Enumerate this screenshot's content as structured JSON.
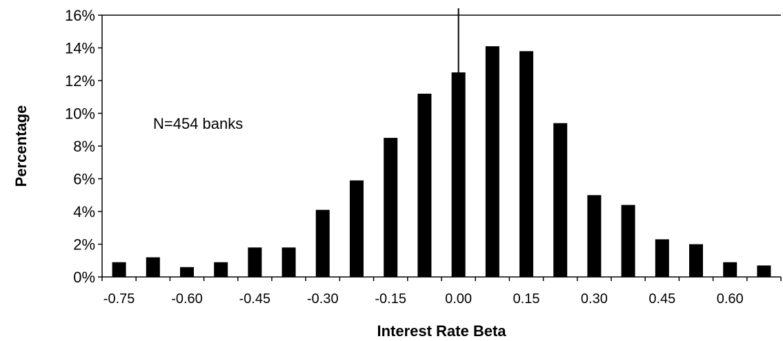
{
  "chart_data": {
    "type": "bar",
    "xlabel": "Interest Rate Beta",
    "ylabel": "Percentage",
    "annotation": "N=454 banks",
    "ylim": [
      0,
      16
    ],
    "y_ticks": [
      "0%",
      "2%",
      "4%",
      "6%",
      "8%",
      "10%",
      "12%",
      "14%",
      "16%"
    ],
    "x_tick_labels": [
      "-0.75",
      "-0.60",
      "-0.45",
      "-0.30",
      "-0.15",
      "0.00",
      "0.15",
      "0.30",
      "0.45",
      "0.60"
    ],
    "categories": [
      "-0.75",
      "-0.675",
      "-0.60",
      "-0.525",
      "-0.45",
      "-0.375",
      "-0.30",
      "-0.225",
      "-0.15",
      "-0.075",
      "0.00",
      "0.075",
      "0.15",
      "0.225",
      "0.30",
      "0.375",
      "0.45",
      "0.525",
      "0.60",
      "0.675"
    ],
    "values": [
      0.9,
      1.2,
      0.6,
      0.9,
      1.8,
      1.8,
      4.1,
      5.9,
      8.5,
      11.2,
      12.5,
      14.1,
      13.8,
      9.4,
      5.0,
      4.4,
      2.3,
      2.0,
      0.9,
      0.7
    ],
    "reference_line_x": "0.00",
    "grid": false,
    "bar_color": "#000000"
  }
}
